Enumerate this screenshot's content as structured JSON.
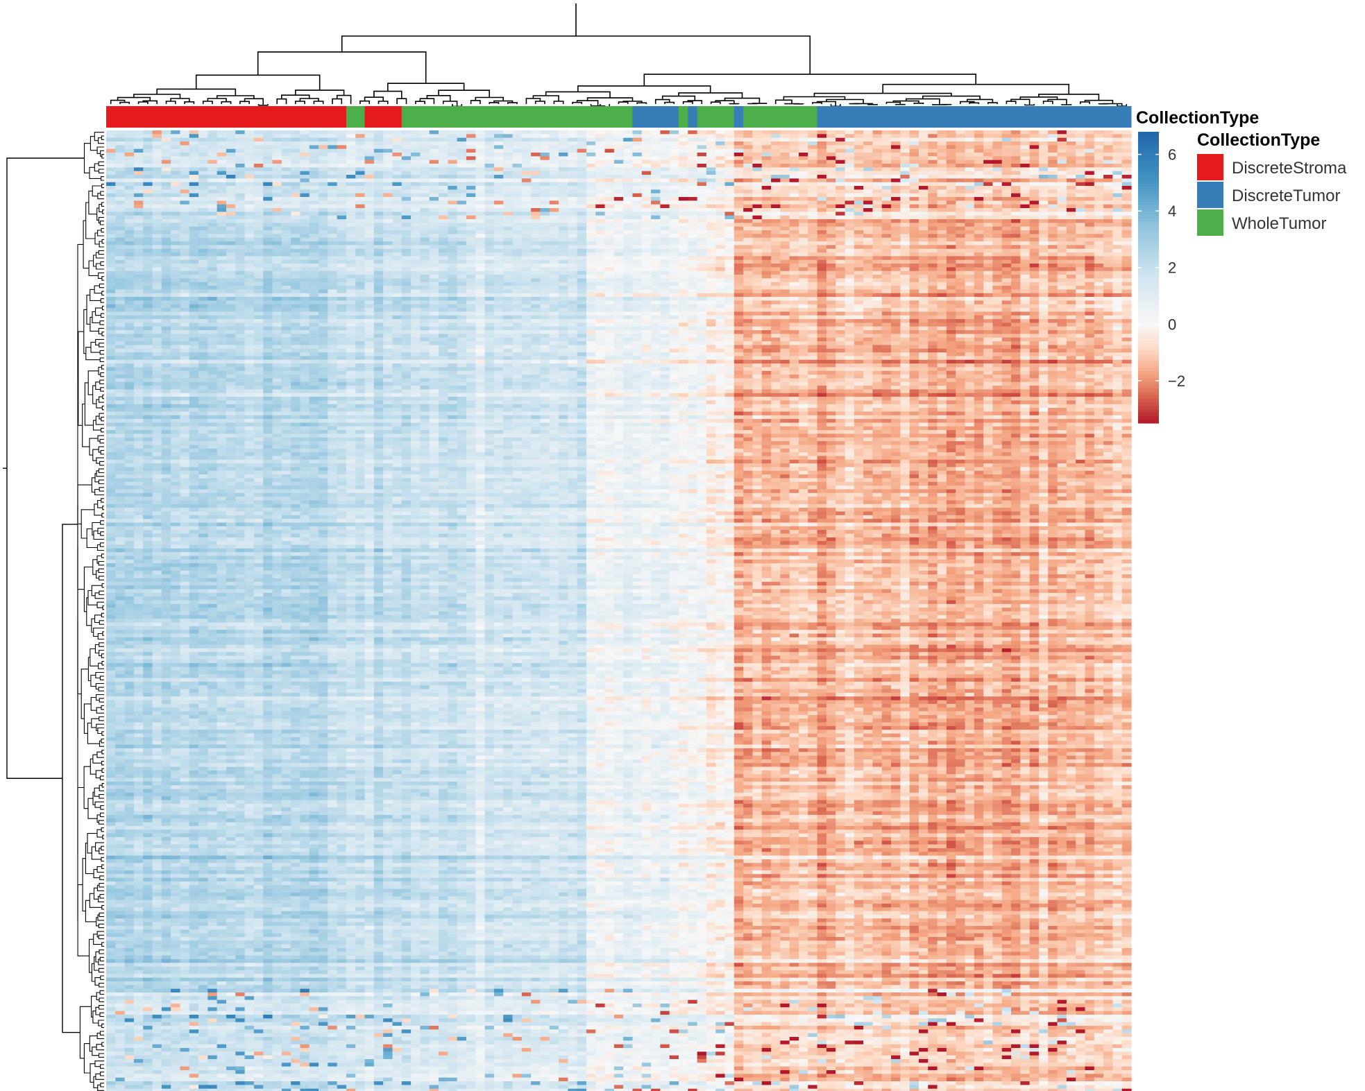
{
  "chart_data": {
    "type": "heatmap",
    "annotation_track_label": "CollectionType",
    "legend": {
      "title": "CollectionType",
      "placement": "right",
      "items": [
        {
          "label": "DiscreteStroma",
          "color": "#e41a1c"
        },
        {
          "label": "DiscreteTumor",
          "color": "#377eb8"
        },
        {
          "label": "WholeTumor",
          "color": "#4daf4a"
        }
      ]
    },
    "colorbar": {
      "ticks": [
        "6",
        "4",
        "2",
        "0",
        "−2"
      ],
      "tick_values": [
        6,
        4,
        2,
        0,
        -2
      ],
      "range": [
        -3.5,
        6.8
      ],
      "palette": [
        "#b2182b",
        "#d6604d",
        "#f4a582",
        "#fddbc7",
        "#f7f7f7",
        "#d1e5f0",
        "#92c5de",
        "#4393c3",
        "#2166ac"
      ]
    },
    "column_annotation": [
      {
        "type": "DiscreteStroma",
        "count": 26
      },
      {
        "type": "WholeTumor",
        "count": 2
      },
      {
        "type": "DiscreteStroma",
        "count": 4
      },
      {
        "type": "WholeTumor",
        "count": 25
      },
      {
        "type": "DiscreteTumor",
        "count": 5
      },
      {
        "type": "WholeTumor",
        "count": 1
      },
      {
        "type": "DiscreteTumor",
        "count": 1
      },
      {
        "type": "WholeTumor",
        "count": 4
      },
      {
        "type": "DiscreteTumor",
        "count": 1
      },
      {
        "type": "WholeTumor",
        "count": 8
      },
      {
        "type": "DiscreteTumor",
        "count": 34
      }
    ],
    "column_profile": [
      {
        "from": 0,
        "to": 0.22,
        "value": 2.4
      },
      {
        "from": 0.22,
        "to": 0.36,
        "value": 1.9
      },
      {
        "from": 0.36,
        "to": 0.47,
        "value": 1.6
      },
      {
        "from": 0.47,
        "to": 0.56,
        "value": 0.4
      },
      {
        "from": 0.56,
        "to": 0.61,
        "value": 0.0
      },
      {
        "from": 0.61,
        "to": 1.0,
        "value": -1.4
      }
    ],
    "row_count": 260,
    "column_count": 111
  }
}
